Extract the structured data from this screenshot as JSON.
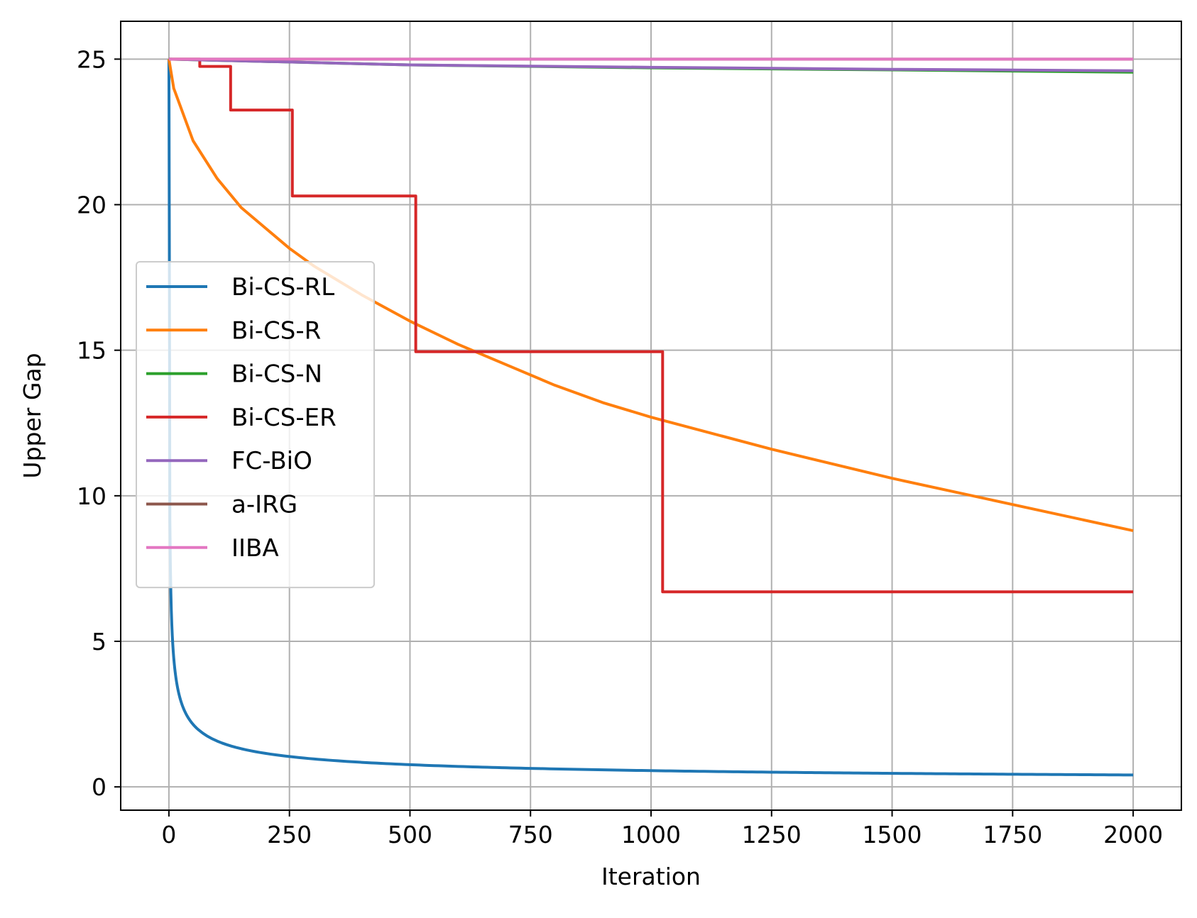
{
  "chart_data": {
    "type": "line",
    "title": "",
    "xlabel": "Iteration",
    "ylabel": "Upper Gap",
    "xlim": [
      -100,
      2100
    ],
    "ylim": [
      -0.8,
      26.3
    ],
    "xticks": [
      0,
      250,
      500,
      750,
      1000,
      1250,
      1500,
      1750,
      2000
    ],
    "yticks": [
      0,
      5,
      10,
      15,
      20,
      25
    ],
    "grid": true,
    "legend_position": "center-left",
    "series": [
      {
        "name": "Bi-CS-RL",
        "color": "#1f77b4",
        "kind": "power",
        "params": {
          "x0": 0,
          "y0": 25,
          "drop_to": 18,
          "c": 12.5,
          "p": 0.45,
          "from": 2,
          "to": 2000
        }
      },
      {
        "name": "Bi-CS-R",
        "color": "#ff7f0e",
        "kind": "decay",
        "points": [
          [
            0,
            25
          ],
          [
            10,
            24
          ],
          [
            50,
            22.2
          ],
          [
            100,
            20.9
          ],
          [
            150,
            19.9
          ],
          [
            200,
            19.2
          ],
          [
            250,
            18.5
          ],
          [
            300,
            17.9
          ],
          [
            400,
            16.9
          ],
          [
            500,
            16.0
          ],
          [
            600,
            15.2
          ],
          [
            700,
            14.5
          ],
          [
            800,
            13.8
          ],
          [
            900,
            13.2
          ],
          [
            1000,
            12.7
          ],
          [
            1250,
            11.6
          ],
          [
            1500,
            10.6
          ],
          [
            1750,
            9.7
          ],
          [
            2000,
            8.8
          ]
        ]
      },
      {
        "name": "Bi-CS-N",
        "color": "#2ca02c",
        "kind": "polyline",
        "points": [
          [
            0,
            25
          ],
          [
            500,
            24.8
          ],
          [
            1000,
            24.7
          ],
          [
            1500,
            24.63
          ],
          [
            2000,
            24.55
          ]
        ]
      },
      {
        "name": "Bi-CS-ER",
        "color": "#d62728",
        "kind": "step",
        "points": [
          [
            0,
            25
          ],
          [
            64,
            25
          ],
          [
            64,
            24.75
          ],
          [
            128,
            24.75
          ],
          [
            128,
            23.25
          ],
          [
            256,
            23.25
          ],
          [
            256,
            20.3
          ],
          [
            512,
            20.3
          ],
          [
            512,
            14.95
          ],
          [
            1024,
            14.95
          ],
          [
            1024,
            6.7
          ],
          [
            2000,
            6.7
          ]
        ]
      },
      {
        "name": "FC-BiO",
        "color": "#9467bd",
        "kind": "polyline",
        "points": [
          [
            0,
            25
          ],
          [
            500,
            24.8
          ],
          [
            1000,
            24.72
          ],
          [
            1500,
            24.65
          ],
          [
            2000,
            24.6
          ]
        ]
      },
      {
        "name": "a-IRG",
        "color": "#8c564b",
        "kind": "polyline",
        "points": [
          [
            0,
            25
          ],
          [
            2000,
            25
          ]
        ]
      },
      {
        "name": "IIBA",
        "color": "#e377c2",
        "kind": "polyline",
        "points": [
          [
            0,
            25
          ],
          [
            2000,
            25
          ]
        ]
      }
    ]
  }
}
